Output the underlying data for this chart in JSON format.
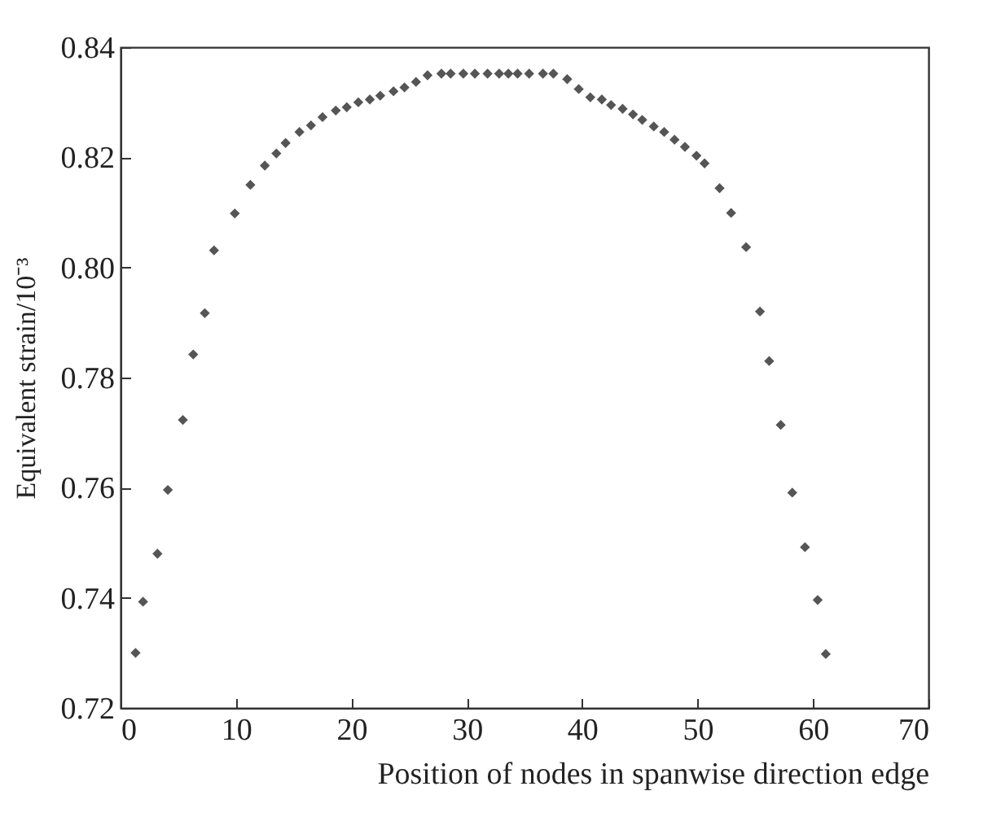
{
  "chart_data": {
    "type": "scatter",
    "xlabel": "Position of nodes in spanwise direction edge",
    "ylabel": "Equivalent strain/10⁻³",
    "x": [
      1.3,
      1.95,
      3.2,
      4.1,
      5.4,
      6.3,
      7.3,
      8.1,
      9.9,
      11.25,
      12.5,
      13.5,
      14.3,
      15.5,
      16.5,
      17.5,
      18.65,
      19.6,
      20.6,
      21.6,
      22.5,
      23.65,
      24.6,
      25.6,
      26.6,
      27.8,
      28.6,
      29.7,
      30.7,
      31.8,
      32.8,
      33.6,
      34.4,
      35.4,
      36.6,
      37.5,
      38.7,
      39.7,
      40.7,
      41.7,
      42.5,
      43.5,
      44.4,
      45.2,
      46.2,
      47.1,
      48.0,
      48.9,
      49.9,
      50.6,
      51.9,
      52.9,
      54.2,
      55.4,
      56.2,
      57.2,
      58.2,
      59.3,
      60.4,
      61.1
    ],
    "series": [
      {
        "color": "#555555",
        "values": [
          0.73,
          0.7393,
          0.748,
          0.7596,
          0.7723,
          0.7842,
          0.7917,
          0.8031,
          0.8098,
          0.815,
          0.8185,
          0.8207,
          0.8226,
          0.8246,
          0.8258,
          0.8273,
          0.8285,
          0.8291,
          0.83,
          0.8305,
          0.8312,
          0.832,
          0.8327,
          0.8337,
          0.8349,
          0.8352,
          0.8352,
          0.8352,
          0.8352,
          0.8352,
          0.8352,
          0.8352,
          0.8352,
          0.8352,
          0.8352,
          0.8352,
          0.8342,
          0.8324,
          0.8309,
          0.8305,
          0.8295,
          0.8288,
          0.8278,
          0.8268,
          0.8256,
          0.8246,
          0.8232,
          0.8219,
          0.8203,
          0.8189,
          0.8144,
          0.8099,
          0.8037,
          0.792,
          0.783,
          0.7714,
          0.7591,
          0.7492,
          0.7396,
          0.7298
        ]
      }
    ],
    "xlim": [
      0,
      70
    ],
    "xticks": [
      0,
      10,
      20,
      30,
      40,
      50,
      60,
      70
    ],
    "ylim": [
      0.72,
      0.84
    ],
    "yticks": [
      {
        "value": 0.72,
        "label": "0.72"
      },
      {
        "value": 0.74,
        "label": "0.74"
      },
      {
        "value": 0.76,
        "label": "0.76"
      },
      {
        "value": 0.78,
        "label": "0.78"
      },
      {
        "value": 0.8,
        "label": "0.80"
      },
      {
        "value": 0.82,
        "label": "0.82"
      },
      {
        "value": 0.84,
        "label": "0.84"
      }
    ],
    "grid": false,
    "marker": "diamond"
  }
}
